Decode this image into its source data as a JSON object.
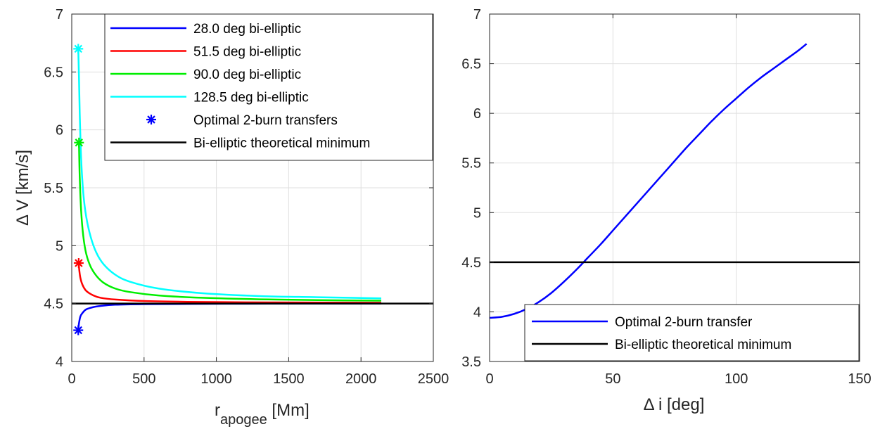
{
  "chart_data": [
    {
      "type": "line",
      "xlabel": {
        "main": "r",
        "sub": "apogee",
        "unit": " [Mm]"
      },
      "ylabel": "Δ V [km/s]",
      "xlim": [
        0,
        2500
      ],
      "ylim": [
        4,
        7
      ],
      "xticks": [
        "0",
        "500",
        "1000",
        "1500",
        "2000",
        "2500"
      ],
      "xtick_values": [
        0,
        500,
        1000,
        1500,
        2000,
        2500
      ],
      "yticks": [
        "4",
        "4.5",
        "5",
        "5.5",
        "6",
        "6.5",
        "7"
      ],
      "ytick_values": [
        4,
        4.5,
        5,
        5.5,
        6,
        6.5,
        7
      ],
      "grid": true,
      "legend_position": "top-right",
      "series": [
        {
          "name": "28.0 deg bi-elliptic",
          "color": "#0000ff",
          "x": [
            45,
            50,
            60,
            75,
            100,
            150,
            200,
            300,
            500,
            800,
            1200,
            1600,
            2000,
            2140
          ],
          "y": [
            4.27,
            4.33,
            4.39,
            4.42,
            4.45,
            4.47,
            4.48,
            4.49,
            4.495,
            4.497,
            4.499,
            4.5,
            4.5,
            4.5
          ]
        },
        {
          "name": "51.5 deg bi-elliptic",
          "color": "#ff0000",
          "x": [
            48,
            52,
            60,
            75,
            100,
            150,
            200,
            300,
            500,
            800,
            1200,
            1600,
            2000,
            2140
          ],
          "y": [
            4.85,
            4.79,
            4.72,
            4.66,
            4.61,
            4.57,
            4.55,
            4.535,
            4.522,
            4.515,
            4.511,
            4.509,
            4.508,
            4.507
          ]
        },
        {
          "name": "90.0 deg bi-elliptic",
          "color": "#00ee00",
          "x": [
            50,
            55,
            65,
            80,
            100,
            130,
            170,
            220,
            300,
            400,
            600,
            900,
            1300,
            1700,
            2140
          ],
          "y": [
            5.89,
            5.6,
            5.3,
            5.08,
            4.93,
            4.82,
            4.74,
            4.68,
            4.63,
            4.6,
            4.57,
            4.55,
            4.537,
            4.53,
            4.525
          ]
        },
        {
          "name": "128.5 deg bi-elliptic",
          "color": "#00ffff",
          "x": [
            45,
            50,
            55,
            65,
            80,
            100,
            130,
            170,
            220,
            300,
            400,
            600,
            900,
            1300,
            1700,
            2140
          ],
          "y": [
            6.7,
            6.45,
            6.15,
            5.75,
            5.45,
            5.25,
            5.08,
            4.94,
            4.84,
            4.75,
            4.69,
            4.63,
            4.59,
            4.565,
            4.555,
            4.545
          ]
        },
        {
          "name": "Optimal 2-burn transfers",
          "color": "#0000ff",
          "marker": "*",
          "x": [
            45,
            48,
            50,
            45
          ],
          "y": [
            4.27,
            4.85,
            5.89,
            6.7
          ],
          "point_colors": [
            "#0000ff",
            "#ff0000",
            "#00ee00",
            "#00ffff"
          ]
        },
        {
          "name": "Bi-elliptic theoretical minimum",
          "color": "#000000",
          "x": [
            0,
            2500
          ],
          "y": [
            4.5,
            4.5
          ]
        }
      ]
    },
    {
      "type": "line",
      "xlabel": "Δ i [deg]",
      "ylabel": "",
      "xlim": [
        0,
        150
      ],
      "ylim": [
        3.5,
        7
      ],
      "xticks": [
        "0",
        "50",
        "100",
        "150"
      ],
      "xtick_values": [
        0,
        50,
        100,
        150
      ],
      "yticks": [
        "3.5",
        "4",
        "4.5",
        "5",
        "5.5",
        "6",
        "6.5",
        "7"
      ],
      "ytick_values": [
        3.5,
        4,
        4.5,
        5,
        5.5,
        6,
        6.5,
        7
      ],
      "grid": true,
      "legend_position": "bottom-right",
      "series": [
        {
          "name": "Optimal 2-burn transfer",
          "color": "#0000ff",
          "x": [
            0,
            5,
            10,
            15,
            20,
            25,
            30,
            35,
            40,
            45,
            50,
            55,
            60,
            65,
            70,
            75,
            80,
            85,
            90,
            95,
            100,
            105,
            110,
            115,
            120,
            125,
            128.5
          ],
          "y": [
            3.94,
            3.95,
            3.98,
            4.03,
            4.1,
            4.19,
            4.3,
            4.42,
            4.55,
            4.68,
            4.82,
            4.96,
            5.1,
            5.24,
            5.38,
            5.52,
            5.66,
            5.79,
            5.92,
            6.04,
            6.15,
            6.26,
            6.36,
            6.45,
            6.54,
            6.63,
            6.7
          ]
        },
        {
          "name": "Bi-elliptic theoretical minimum",
          "color": "#000000",
          "x": [
            0,
            150
          ],
          "y": [
            4.5,
            4.5
          ]
        }
      ]
    }
  ]
}
